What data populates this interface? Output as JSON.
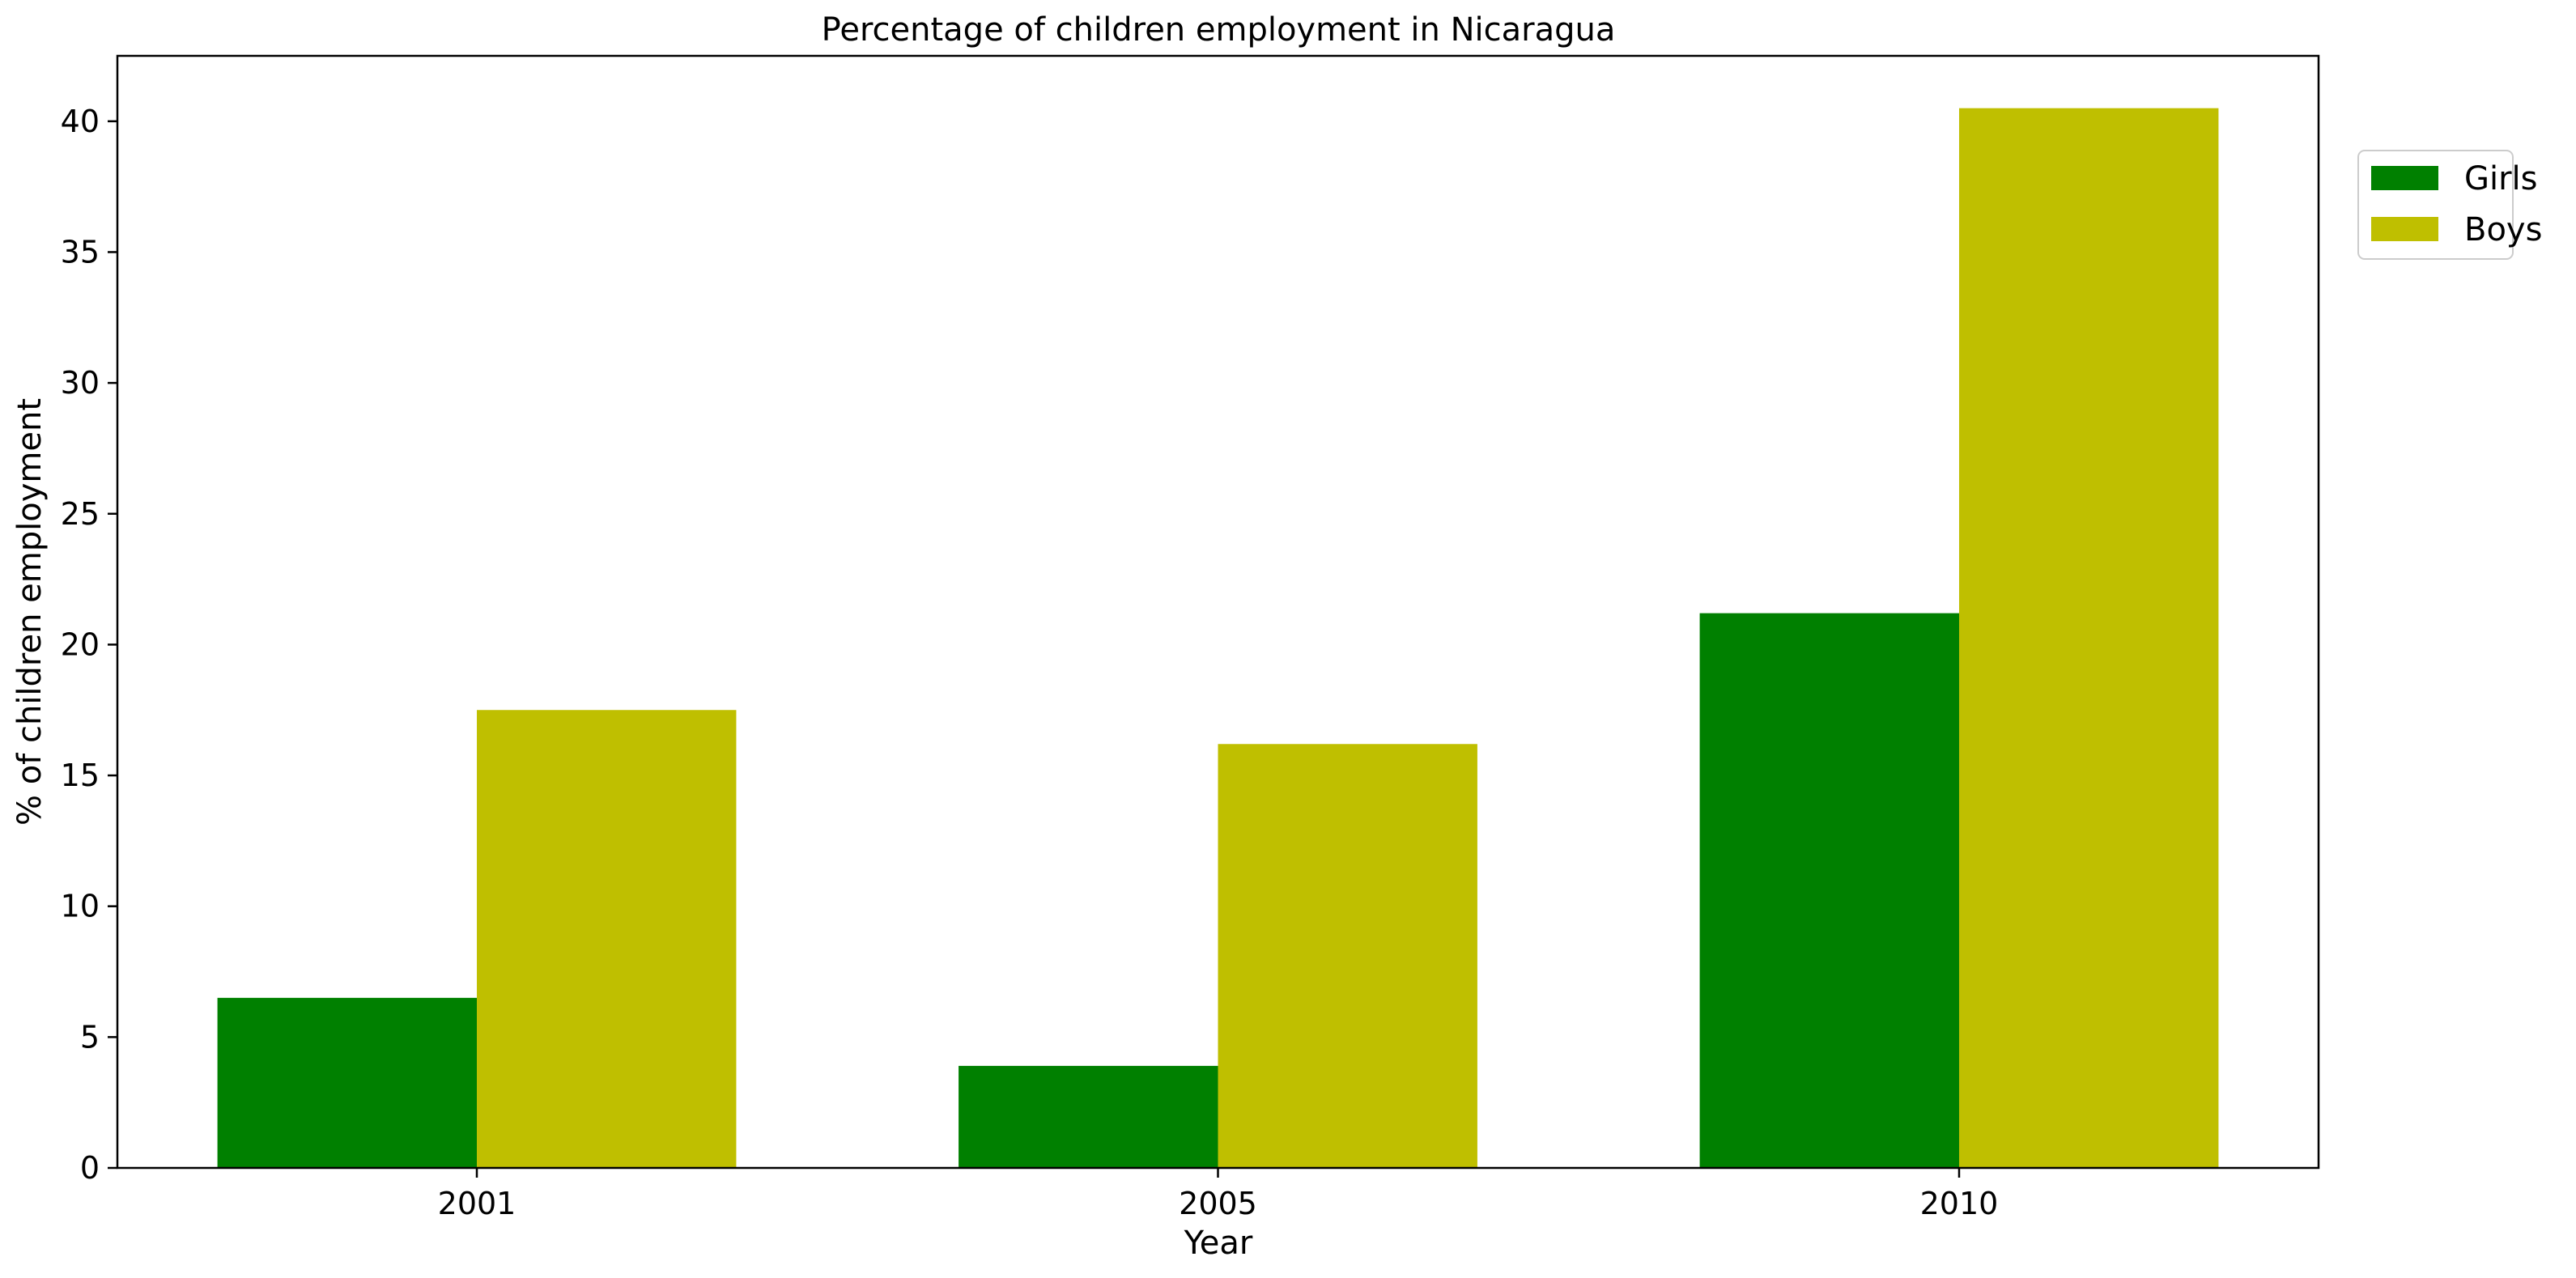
{
  "chart_data": {
    "type": "bar",
    "title": "Percentage of children employment in Nicaragua",
    "xlabel": "Year",
    "ylabel": "% of children employment",
    "categories": [
      "2001",
      "2005",
      "2010"
    ],
    "series": [
      {
        "name": "Girls",
        "color": "#008000",
        "values": [
          6.5,
          3.9,
          21.2
        ]
      },
      {
        "name": "Boys",
        "color": "#bfbf00",
        "values": [
          17.5,
          16.2,
          40.5
        ]
      }
    ],
    "ylim": [
      0,
      42.5
    ],
    "yticks": [
      0,
      5,
      10,
      15,
      20,
      25,
      30,
      35,
      40
    ],
    "grid": false,
    "legend_position": "upper-right-outside"
  }
}
